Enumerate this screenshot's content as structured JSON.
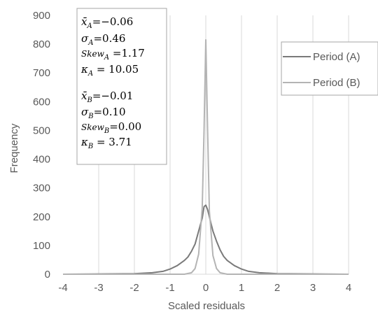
{
  "chart_data": {
    "type": "line",
    "xlabel": "Scaled residuals",
    "ylabel": "Frequency",
    "xlim": [
      -4,
      4
    ],
    "ylim": [
      0,
      900
    ],
    "x_ticks": [
      "-4",
      "-3",
      "-2",
      "-1",
      "0",
      "1",
      "2",
      "3",
      "4"
    ],
    "y_ticks": [
      "0",
      "100",
      "200",
      "300",
      "400",
      "500",
      "600",
      "700",
      "800",
      "900"
    ],
    "grid": "vertical",
    "legend_position": "right",
    "series": [
      {
        "name": "Period (A)",
        "color": "#7a7a7a",
        "x": [
          -4,
          -2,
          -1.5,
          -1.2,
          -1.0,
          -0.8,
          -0.6,
          -0.5,
          -0.4,
          -0.3,
          -0.2,
          -0.1,
          -0.05,
          0.0,
          0.05,
          0.1,
          0.15,
          0.2,
          0.3,
          0.4,
          0.5,
          0.6,
          0.8,
          1.0,
          1.2,
          1.5,
          2.0,
          4.0
        ],
        "y": [
          0,
          2,
          5,
          10,
          18,
          30,
          48,
          60,
          80,
          105,
          150,
          195,
          235,
          240,
          225,
          200,
          175,
          150,
          115,
          85,
          62,
          48,
          30,
          18,
          10,
          5,
          2,
          0
        ]
      },
      {
        "name": "Period (B)",
        "color": "#b4b4b4",
        "x": [
          -4,
          -0.6,
          -0.4,
          -0.3,
          -0.2,
          -0.1,
          -0.05,
          0.0,
          0.05,
          0.1,
          0.2,
          0.3,
          0.4,
          0.6,
          4.0
        ],
        "y": [
          0,
          0,
          5,
          20,
          70,
          230,
          500,
          815,
          510,
          220,
          65,
          20,
          5,
          0,
          0
        ]
      }
    ],
    "annotations": {
      "a_mean": "=−0.06",
      "a_sigma": "=0.46",
      "a_skew": " =1.17",
      "a_kappa": " = 10.05",
      "b_mean": "=−0.01",
      "b_sigma": "=0.10",
      "b_skew": "=0.00",
      "b_kappa": " = 3.71"
    }
  }
}
